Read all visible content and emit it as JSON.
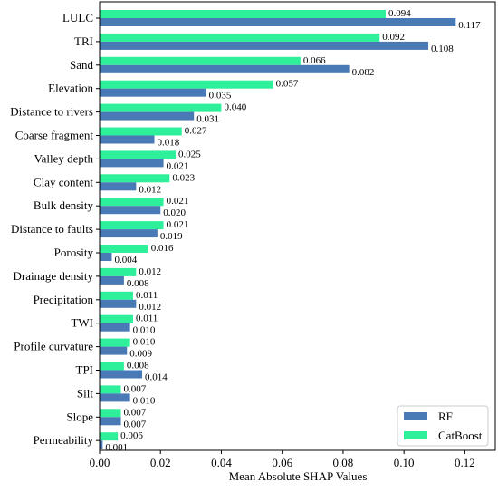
{
  "chart_data": {
    "type": "bar",
    "orientation": "horizontal",
    "title": "",
    "xlabel": "Mean Absolute SHAP Values",
    "ylabel": "",
    "xlim": [
      0.0,
      0.13
    ],
    "x_ticks": [
      "0.00",
      "0.02",
      "0.04",
      "0.06",
      "0.08",
      "0.10",
      "0.12"
    ],
    "x_tick_values": [
      0.0,
      0.02,
      0.04,
      0.06,
      0.08,
      0.1,
      0.12
    ],
    "grid": false,
    "legend_position": "bottom-right",
    "categories": [
      "LULC",
      "TRI",
      "Sand",
      "Elevation",
      "Distance to rivers",
      "Coarse fragment",
      "Valley depth",
      "Clay content",
      "Bulk density",
      "Distance to faults",
      "Porosity",
      "Drainage density",
      "Precipitation",
      "TWI",
      "Profile curvature",
      "TPI",
      "Silt",
      "Slope",
      "Permeability"
    ],
    "series": [
      {
        "name": "RF",
        "color": "#4a7ab5",
        "values": [
          0.117,
          0.108,
          0.082,
          0.035,
          0.031,
          0.018,
          0.021,
          0.012,
          0.02,
          0.019,
          0.004,
          0.008,
          0.012,
          0.01,
          0.009,
          0.014,
          0.01,
          0.007,
          0.001
        ],
        "labels": [
          "0.117",
          "0.108",
          "0.082",
          "0.035",
          "0.031",
          "0.018",
          "0.021",
          "0.012",
          "0.020",
          "0.019",
          "0.004",
          "0.008",
          "0.012",
          "0.010",
          "0.009",
          "0.014",
          "0.010",
          "0.007",
          "0.001"
        ]
      },
      {
        "name": "CatBoost",
        "color": "#2ef09a",
        "values": [
          0.094,
          0.092,
          0.066,
          0.057,
          0.04,
          0.027,
          0.025,
          0.023,
          0.021,
          0.021,
          0.016,
          0.012,
          0.011,
          0.011,
          0.01,
          0.008,
          0.007,
          0.007,
          0.006
        ],
        "labels": [
          "0.094",
          "0.092",
          "0.066",
          "0.057",
          "0.040",
          "0.027",
          "0.025",
          "0.023",
          "0.021",
          "0.021",
          "0.016",
          "0.012",
          "0.011",
          "0.011",
          "0.010",
          "0.008",
          "0.007",
          "0.007",
          "0.006"
        ]
      }
    ]
  }
}
